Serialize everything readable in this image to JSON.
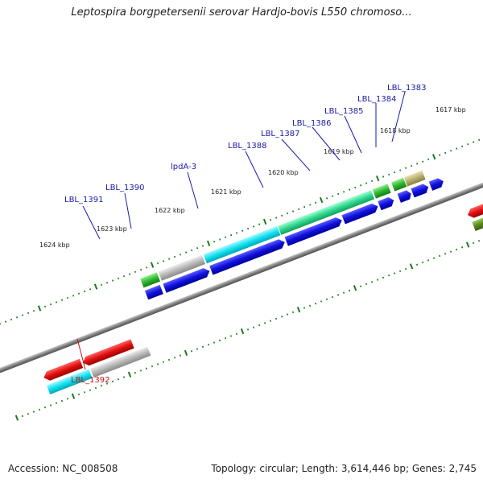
{
  "title": "Leptospira borgpetersenii serovar Hardjo-bovis L550 chromoso...",
  "footer": {
    "accession": "Accession: NC_008508",
    "summary": "Topology: circular; Length: 3,614,446 bp; Genes: 2,745"
  },
  "scale_labels": [
    "1624 kbp",
    "1623 kbp",
    "1622 kbp",
    "1621 kbp",
    "1620 kbp",
    "1619 kbp",
    "1618 kbp",
    "1617 kbp"
  ],
  "gene_labels": [
    {
      "text": "LBL_1391",
      "color": "#1a1aa8"
    },
    {
      "text": "LBL_1390",
      "color": "#1a1aa8"
    },
    {
      "text": "lpdA-3",
      "color": "#1a1aa8"
    },
    {
      "text": "LBL_1388",
      "color": "#1a1aa8"
    },
    {
      "text": "LBL_1387",
      "color": "#1a1aa8"
    },
    {
      "text": "LBL_1386",
      "color": "#1a1aa8"
    },
    {
      "text": "LBL_1385",
      "color": "#1a1aa8"
    },
    {
      "text": "LBL_1384",
      "color": "#1a1aa8"
    },
    {
      "text": "LBL_1383",
      "color": "#1a1aa8"
    },
    {
      "text": "LBL_1392",
      "color": "#cc1010"
    }
  ],
  "colors": {
    "backbone": "#808080",
    "tick": "#1a7a1a",
    "cds_arrow": "#1010dd",
    "reverse_arrow": "#e01010",
    "cyan_feature": "#10e0f0",
    "teal_feature": "#30d890",
    "green_feature": "#30b830",
    "gray_feature": "#b8b8b8",
    "olive_feature": "#b8b070",
    "darkgreen_feature": "#5a8a20"
  }
}
